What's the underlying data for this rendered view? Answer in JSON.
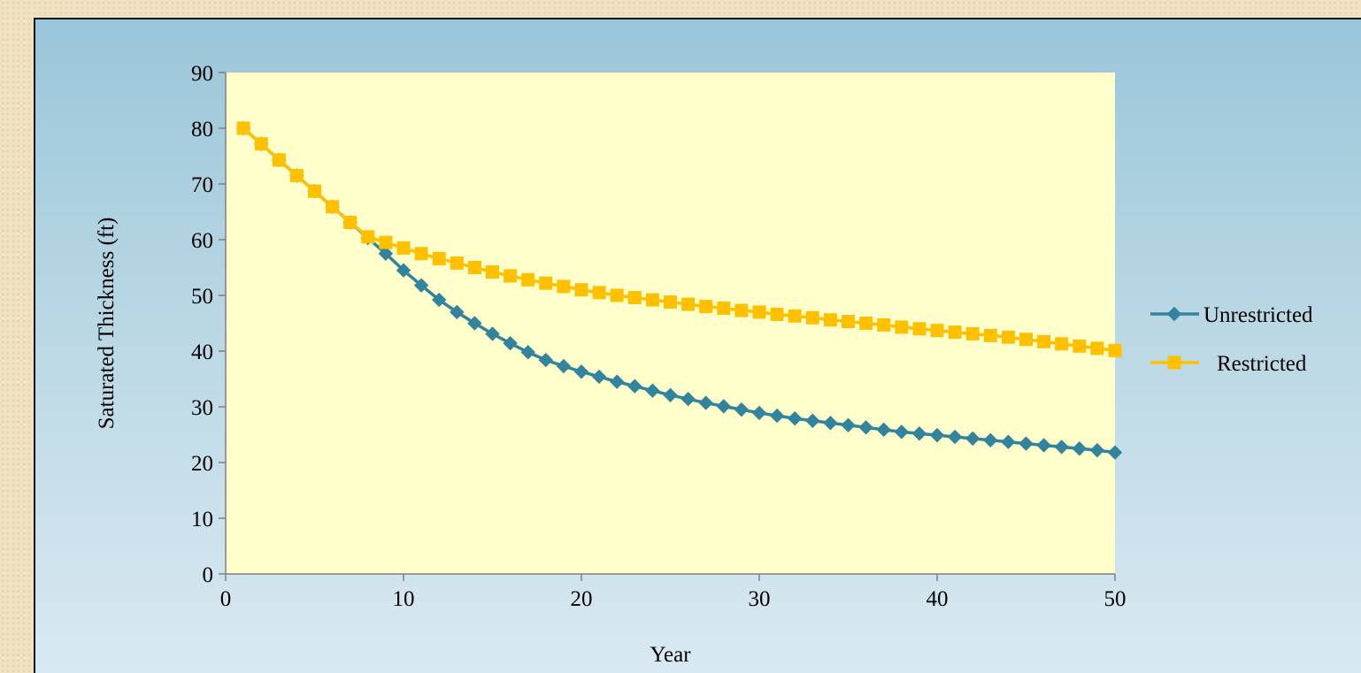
{
  "chart_data": {
    "type": "line",
    "title": "",
    "xlabel": "Year",
    "ylabel": "Saturated Thickness (ft)",
    "xlim": [
      0,
      50
    ],
    "ylim": [
      0,
      90
    ],
    "xticks": [
      0,
      10,
      20,
      30,
      40,
      50
    ],
    "yticks": [
      0,
      10,
      20,
      30,
      40,
      50,
      60,
      70,
      80,
      90
    ],
    "grid": false,
    "legend_position": "right",
    "plot_background": "#ffffcc",
    "x": [
      1,
      2,
      3,
      4,
      5,
      6,
      7,
      8,
      9,
      10,
      11,
      12,
      13,
      14,
      15,
      16,
      17,
      18,
      19,
      20,
      21,
      22,
      23,
      24,
      25,
      26,
      27,
      28,
      29,
      30,
      31,
      32,
      33,
      34,
      35,
      36,
      37,
      38,
      39,
      40,
      41,
      42,
      43,
      44,
      45,
      46,
      47,
      48,
      49,
      50
    ],
    "series": [
      {
        "name": "Unrestricted",
        "color": "#31849b",
        "marker": "diamond",
        "values": [
          80,
          77.2,
          74.3,
          71.5,
          68.7,
          65.9,
          63.1,
          60.3,
          57.5,
          54.5,
          51.8,
          49.2,
          47.0,
          45.0,
          43.1,
          41.4,
          39.8,
          38.4,
          37.3,
          36.3,
          35.4,
          34.5,
          33.7,
          32.9,
          32.1,
          31.4,
          30.7,
          30.1,
          29.5,
          28.9,
          28.4,
          27.9,
          27.5,
          27.1,
          26.7,
          26.3,
          25.9,
          25.5,
          25.2,
          24.9,
          24.6,
          24.3,
          24.0,
          23.7,
          23.4,
          23.1,
          22.8,
          22.5,
          22.2,
          21.8
        ]
      },
      {
        "name": "Restricted",
        "color": "#ffc000",
        "marker": "square",
        "values": [
          80,
          77.2,
          74.3,
          71.5,
          68.7,
          65.9,
          63.1,
          60.5,
          59.5,
          58.5,
          57.5,
          56.6,
          55.8,
          55.0,
          54.2,
          53.5,
          52.8,
          52.2,
          51.6,
          51.0,
          50.5,
          50.0,
          49.6,
          49.2,
          48.8,
          48.4,
          48.0,
          47.7,
          47.3,
          47.0,
          46.6,
          46.3,
          46.0,
          45.6,
          45.3,
          45.0,
          44.7,
          44.3,
          44.0,
          43.7,
          43.4,
          43.1,
          42.8,
          42.5,
          42.1,
          41.7,
          41.3,
          40.9,
          40.5,
          40.1
        ]
      }
    ]
  }
}
